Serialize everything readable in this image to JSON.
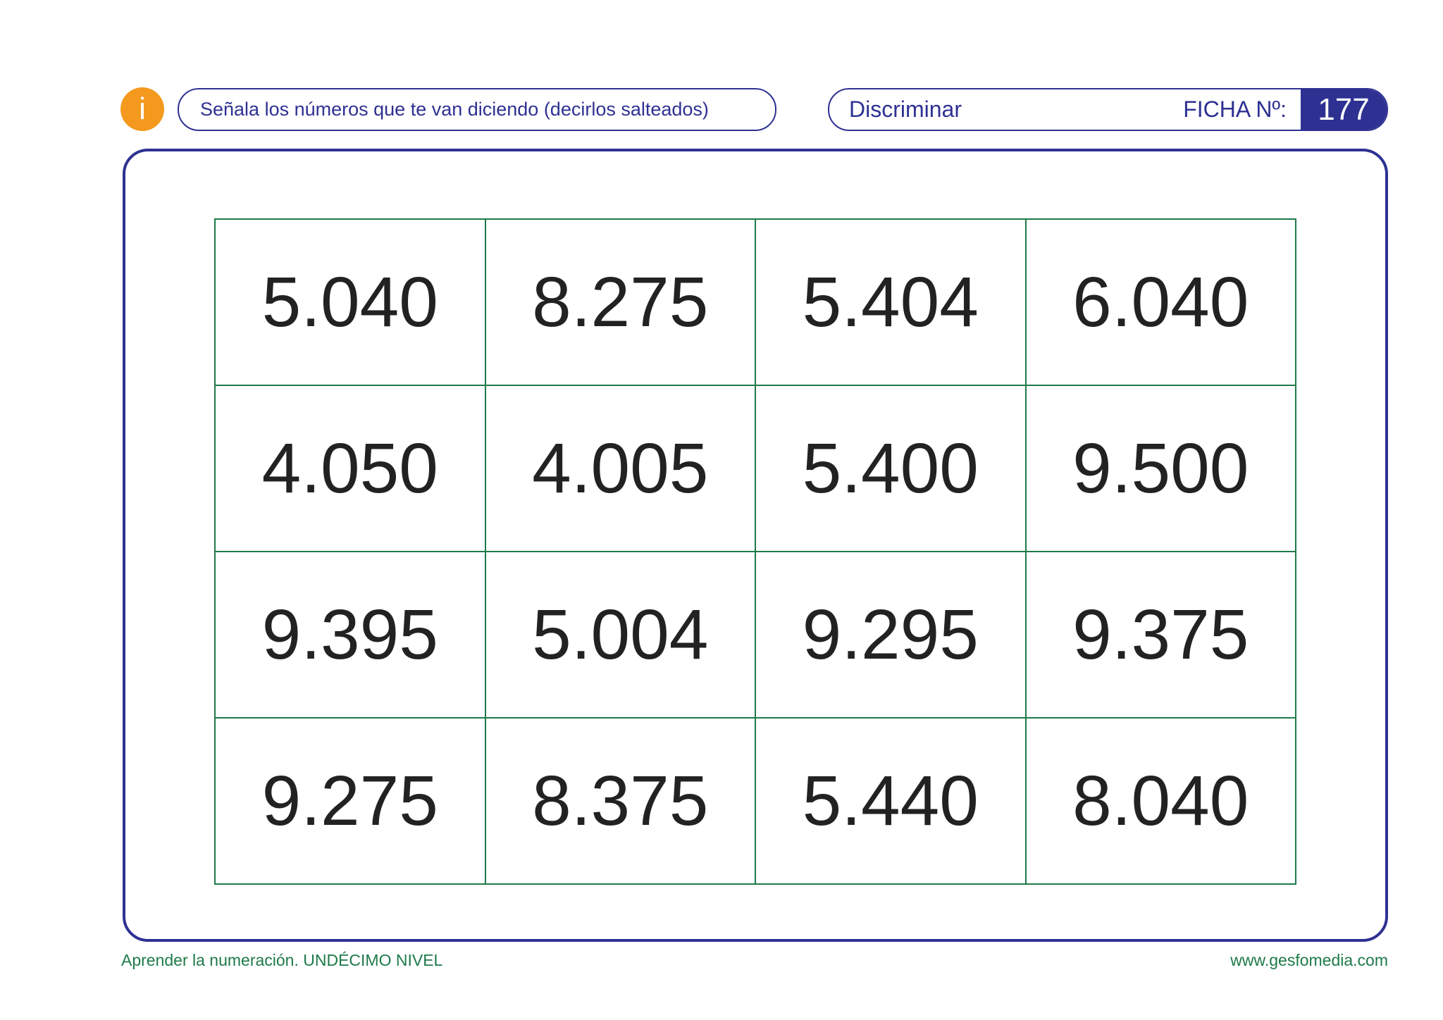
{
  "header": {
    "icon": "i",
    "instruction": "Señala los números que te van diciendo (decirlos salteados)",
    "topic": "Discriminar",
    "ficha_label": "FICHA Nº:",
    "ficha_number": "177"
  },
  "table": {
    "rows": [
      [
        "5.040",
        "8.275",
        "5.404",
        "6.040"
      ],
      [
        "4.050",
        "4.005",
        "5.400",
        "9.500"
      ],
      [
        "9.395",
        "5.004",
        "9.295",
        "9.375"
      ],
      [
        "9.275",
        "8.375",
        "5.440",
        "8.040"
      ]
    ]
  },
  "footer": {
    "left": "Aprender la numeración. UNDÉCIMO NIVEL",
    "right": "www.gesfomedia.com"
  }
}
